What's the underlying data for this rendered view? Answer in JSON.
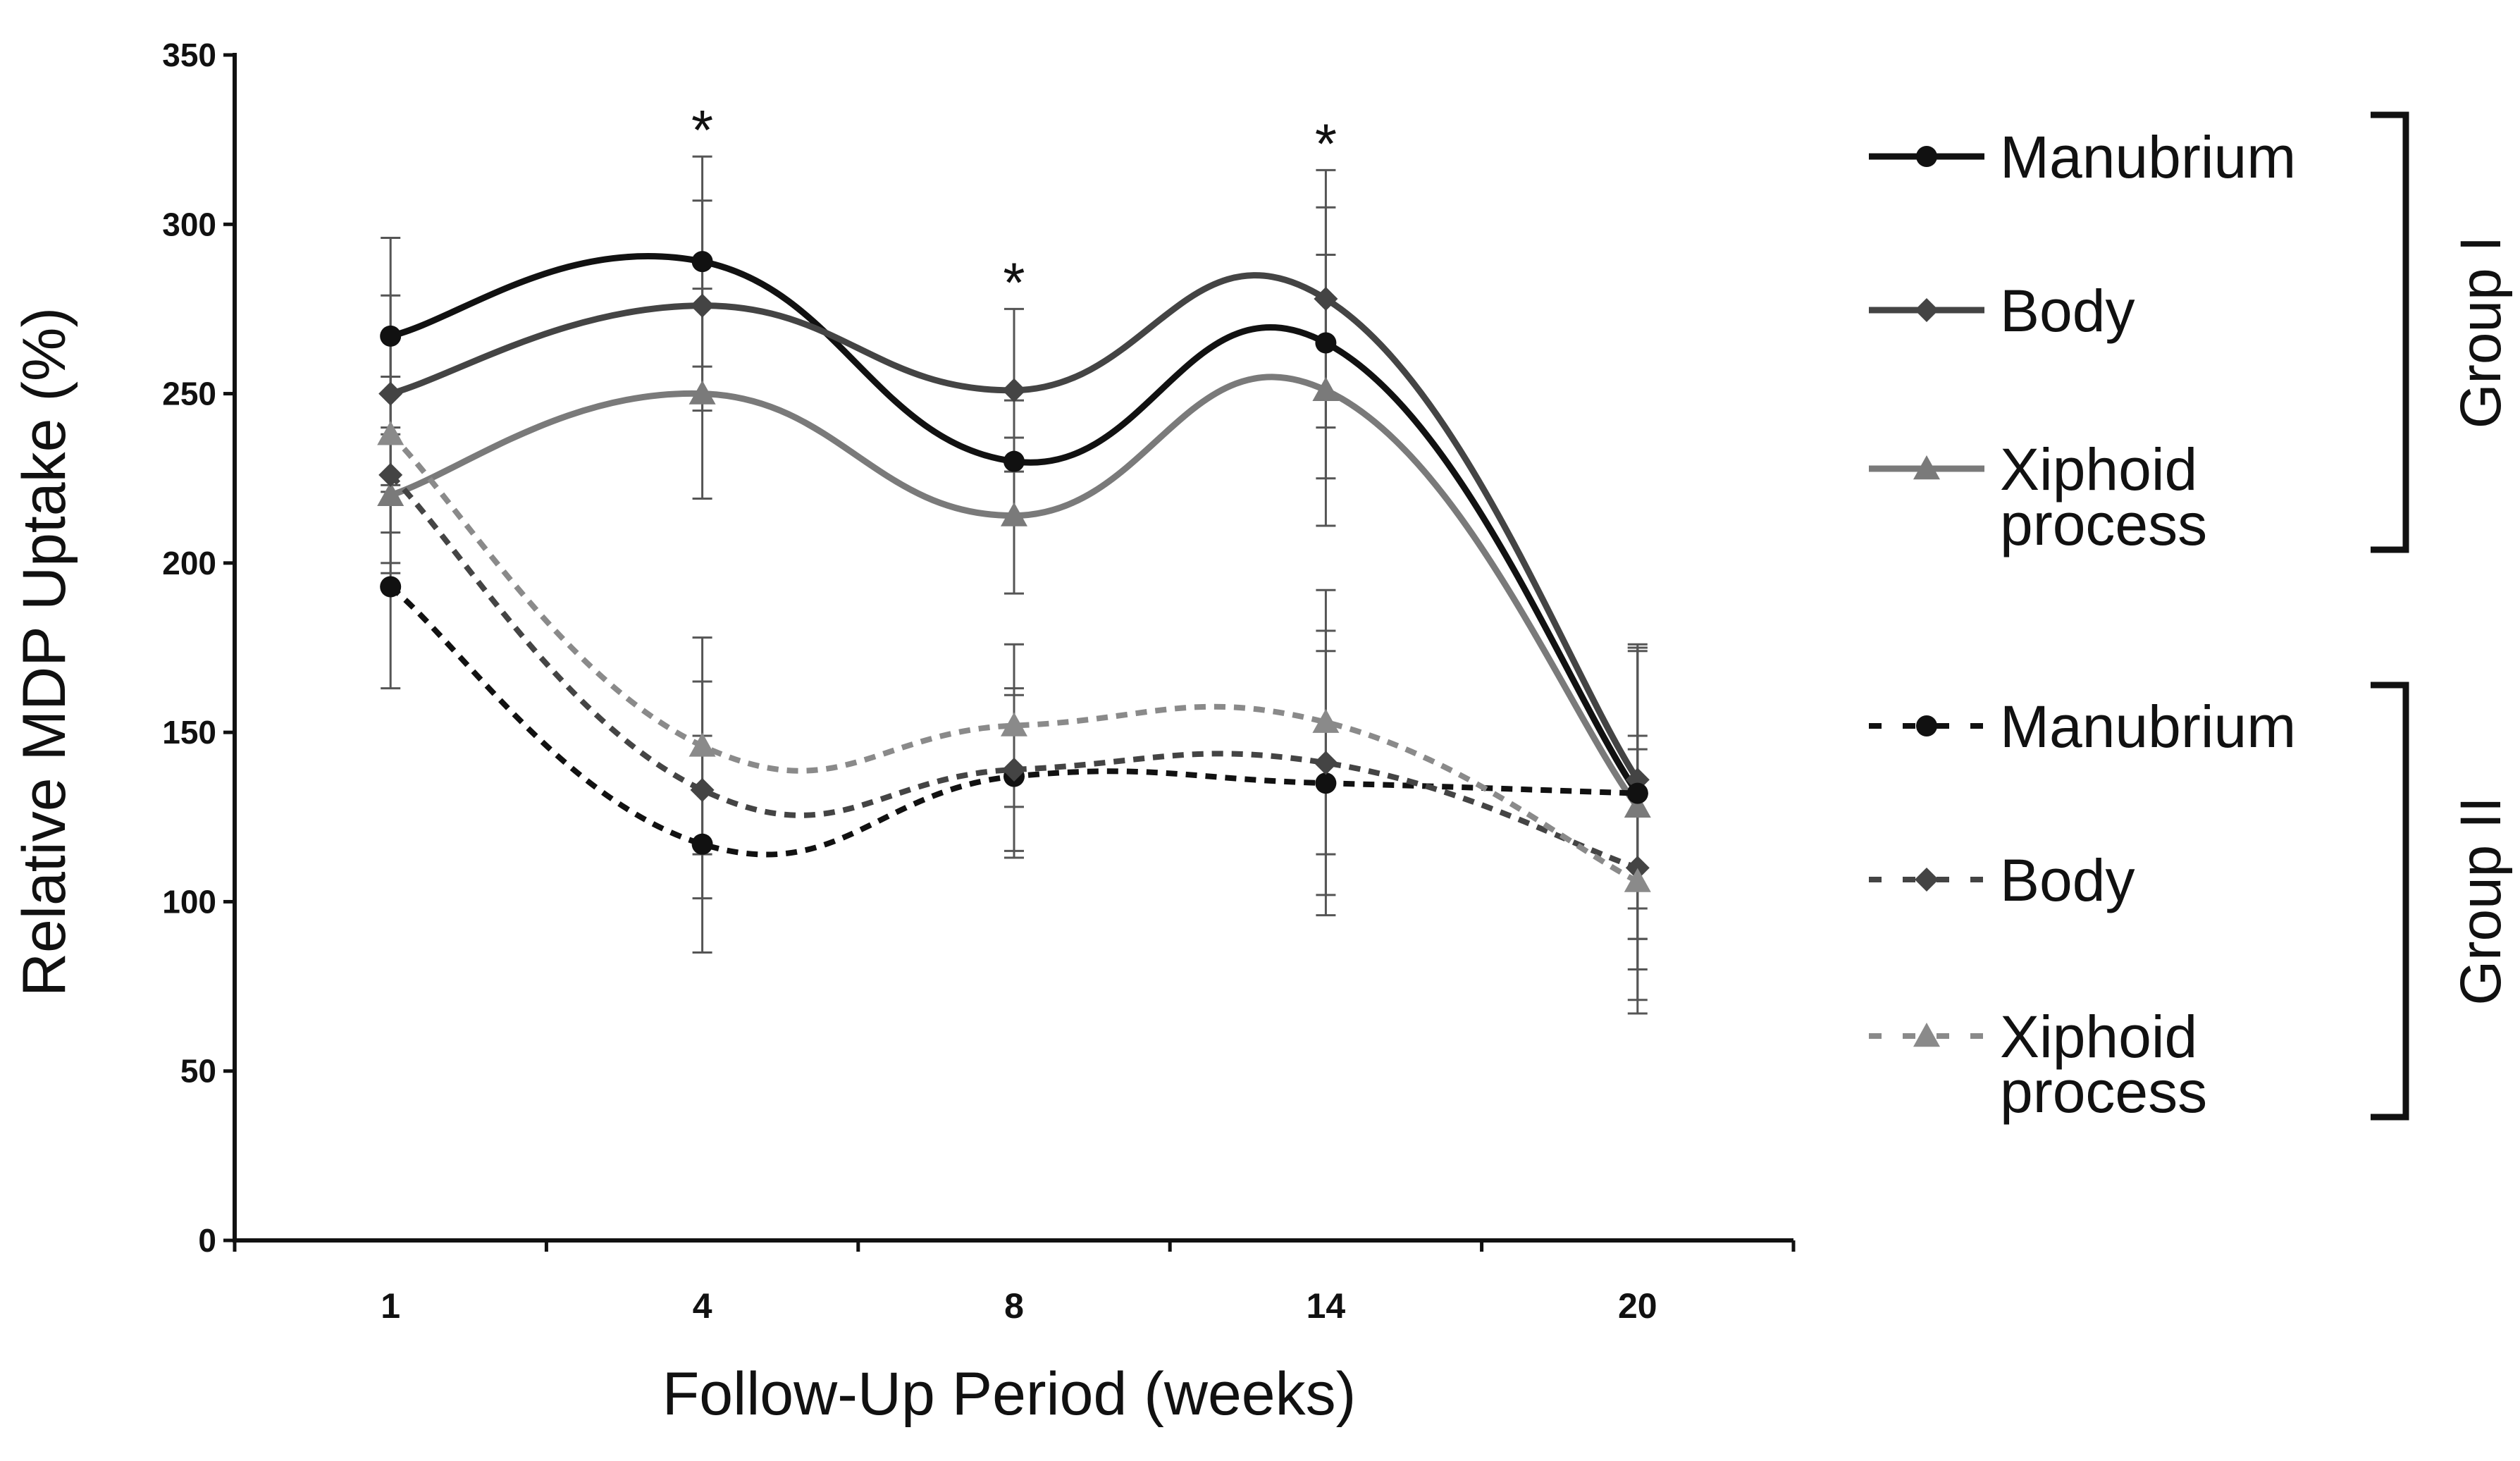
{
  "chart_data": {
    "type": "line",
    "title": "",
    "xlabel": "Follow-Up Period (weeks)",
    "ylabel": "Relative MDP Uptake (%)",
    "categories": [
      "1",
      "4",
      "8",
      "14",
      "20"
    ],
    "ylim": [
      0,
      350
    ],
    "yticks": [
      "0",
      "50",
      "100",
      "150",
      "200",
      "250",
      "300",
      "350"
    ],
    "grid": false,
    "significance": [
      {
        "category": "4",
        "label": "*",
        "y": 330
      },
      {
        "category": "8",
        "label": "*",
        "y": 285
      },
      {
        "category": "14",
        "label": "*",
        "y": 326
      }
    ],
    "groups": [
      {
        "name": "Group I",
        "line_style": "solid"
      },
      {
        "name": "Group II",
        "line_style": "dashed"
      }
    ],
    "series": [
      {
        "name": "Manubrium",
        "group": "Group I",
        "marker": "circle",
        "color": "#111111",
        "values": [
          267,
          289,
          230,
          265,
          132
        ],
        "errors": [
          29,
          31,
          18,
          40,
          43
        ]
      },
      {
        "name": "Body",
        "group": "Group I",
        "marker": "diamond",
        "color": "#444444",
        "values": [
          250,
          276,
          251,
          278,
          136
        ],
        "errors": [
          29,
          31,
          24,
          38,
          38
        ]
      },
      {
        "name": "Xiphoid process",
        "group": "Group I",
        "marker": "triangle",
        "color": "#7a7a7a",
        "values": [
          220,
          250,
          214,
          251,
          128
        ],
        "errors": [
          20,
          31,
          23,
          40,
          48
        ]
      },
      {
        "name": "Manubrium",
        "group": "Group II",
        "marker": "circle",
        "color": "#111111",
        "values": [
          193,
          117,
          137,
          135,
          132
        ],
        "errors": [
          30,
          32,
          24,
          39,
          43
        ]
      },
      {
        "name": "Body",
        "group": "Group II",
        "marker": "diamond",
        "color": "#444444",
        "values": [
          226,
          133,
          139,
          141,
          110
        ],
        "errors": [
          29,
          32,
          24,
          39,
          39
        ]
      },
      {
        "name": "Xiphoid process",
        "group": "Group II",
        "marker": "triangle",
        "color": "#8a8a8a",
        "values": [
          238,
          146,
          152,
          153,
          106
        ],
        "errors": [
          29,
          32,
          24,
          39,
          39
        ]
      }
    ],
    "legend": {
      "placement": "right",
      "entries": [
        {
          "series": 0,
          "label_lines": [
            "Manubrium"
          ]
        },
        {
          "series": 1,
          "label_lines": [
            "Body"
          ]
        },
        {
          "series": 2,
          "label_lines": [
            "Xiphoid",
            "process"
          ]
        },
        {
          "series": 3,
          "label_lines": [
            "Manubrium"
          ]
        },
        {
          "series": 4,
          "label_lines": [
            "Body"
          ]
        },
        {
          "series": 5,
          "label_lines": [
            "Xiphoid",
            "process"
          ]
        }
      ]
    }
  }
}
